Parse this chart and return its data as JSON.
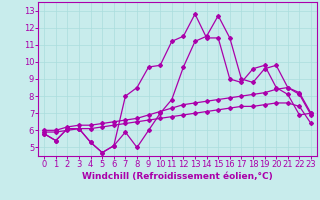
{
  "xlabel": "Windchill (Refroidissement éolien,°C)",
  "xlim": [
    -0.5,
    23.5
  ],
  "ylim": [
    4.5,
    13.5
  ],
  "xticks": [
    0,
    1,
    2,
    3,
    4,
    5,
    6,
    7,
    8,
    9,
    10,
    11,
    12,
    13,
    14,
    15,
    16,
    17,
    18,
    19,
    20,
    21,
    22,
    23
  ],
  "yticks": [
    5,
    6,
    7,
    8,
    9,
    10,
    11,
    12,
    13
  ],
  "bg_color": "#c8ecec",
  "line_color": "#aa00aa",
  "grid_color": "#aadddd",
  "lines": [
    {
      "x": [
        0,
        1,
        2,
        3,
        4,
        5,
        6,
        7,
        8,
        9,
        10,
        11,
        12,
        13,
        14,
        15,
        16,
        17,
        18,
        19,
        20,
        21,
        22,
        23
      ],
      "y": [
        5.8,
        5.4,
        6.1,
        6.1,
        5.3,
        4.7,
        5.1,
        8.0,
        8.5,
        9.7,
        9.8,
        11.2,
        11.5,
        12.8,
        11.4,
        11.4,
        9.0,
        8.8,
        9.6,
        9.8,
        8.5,
        8.1,
        6.9,
        7.0
      ]
    },
    {
      "x": [
        0,
        1,
        2,
        3,
        4,
        5,
        6,
        7,
        8,
        9,
        10,
        11,
        12,
        13,
        14,
        15,
        16,
        17,
        18,
        19,
        20,
        21,
        22,
        23
      ],
      "y": [
        5.8,
        5.4,
        6.1,
        6.1,
        5.3,
        4.7,
        5.1,
        5.9,
        5.0,
        6.0,
        7.0,
        7.8,
        9.7,
        11.2,
        11.5,
        12.7,
        11.4,
        9.0,
        8.8,
        9.6,
        9.8,
        8.5,
        8.1,
        6.9
      ]
    },
    {
      "x": [
        0,
        1,
        2,
        3,
        4,
        5,
        6,
        7,
        8,
        9,
        10,
        11,
        12,
        13,
        14,
        15,
        16,
        17,
        18,
        19,
        20,
        21,
        22,
        23
      ],
      "y": [
        6.0,
        6.0,
        6.2,
        6.3,
        6.3,
        6.4,
        6.5,
        6.6,
        6.7,
        6.9,
        7.1,
        7.3,
        7.5,
        7.6,
        7.7,
        7.8,
        7.9,
        8.0,
        8.1,
        8.2,
        8.4,
        8.5,
        8.2,
        7.0
      ]
    },
    {
      "x": [
        0,
        1,
        2,
        3,
        4,
        5,
        6,
        7,
        8,
        9,
        10,
        11,
        12,
        13,
        14,
        15,
        16,
        17,
        18,
        19,
        20,
        21,
        22,
        23
      ],
      "y": [
        5.9,
        5.9,
        6.0,
        6.1,
        6.1,
        6.2,
        6.3,
        6.4,
        6.5,
        6.6,
        6.7,
        6.8,
        6.9,
        7.0,
        7.1,
        7.2,
        7.3,
        7.4,
        7.4,
        7.5,
        7.6,
        7.6,
        7.4,
        6.4
      ]
    }
  ],
  "marker": "D",
  "markersize": 2,
  "linewidth": 0.9,
  "xlabel_fontsize": 6.5,
  "tick_fontsize": 6.0,
  "tick_color": "#aa00aa",
  "spine_color": "#aa00aa"
}
